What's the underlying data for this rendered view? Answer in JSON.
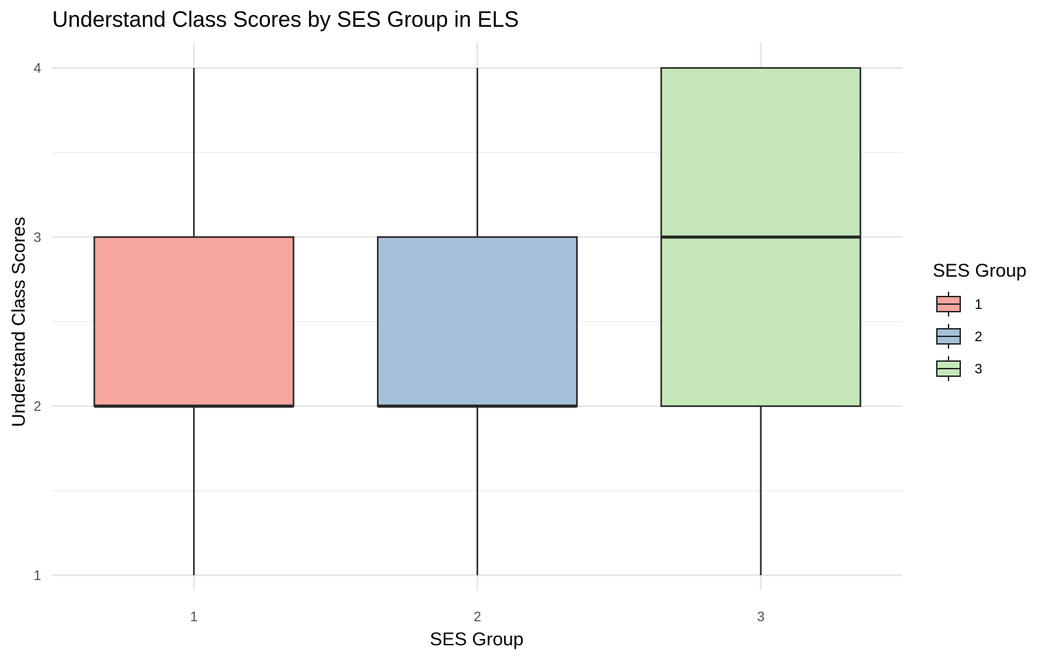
{
  "chart_data": {
    "type": "box",
    "title": "Understand Class Scores by SES Group in ELS",
    "xlabel": "SES Group",
    "ylabel": "Understand Class Scores",
    "categories": [
      "1",
      "2",
      "3"
    ],
    "y_ticks": [
      "1",
      "2",
      "3",
      "4"
    ],
    "ylim": [
      0.9,
      4.15
    ],
    "grid": true,
    "legend": {
      "title": "SES Group",
      "position": "right",
      "entries": [
        "1",
        "2",
        "3"
      ]
    },
    "boxes": [
      {
        "category": "1",
        "min": 1,
        "q1": 2,
        "median": 2,
        "q3": 3,
        "max": 4,
        "color": "#F7A59F"
      },
      {
        "category": "2",
        "min": 1,
        "q1": 2,
        "median": 2,
        "q3": 3,
        "max": 4,
        "color": "#A6C0DA"
      },
      {
        "category": "3",
        "min": 1,
        "q1": 2,
        "median": 3,
        "q3": 4,
        "max": 4,
        "color": "#C4E8BA"
      }
    ]
  }
}
